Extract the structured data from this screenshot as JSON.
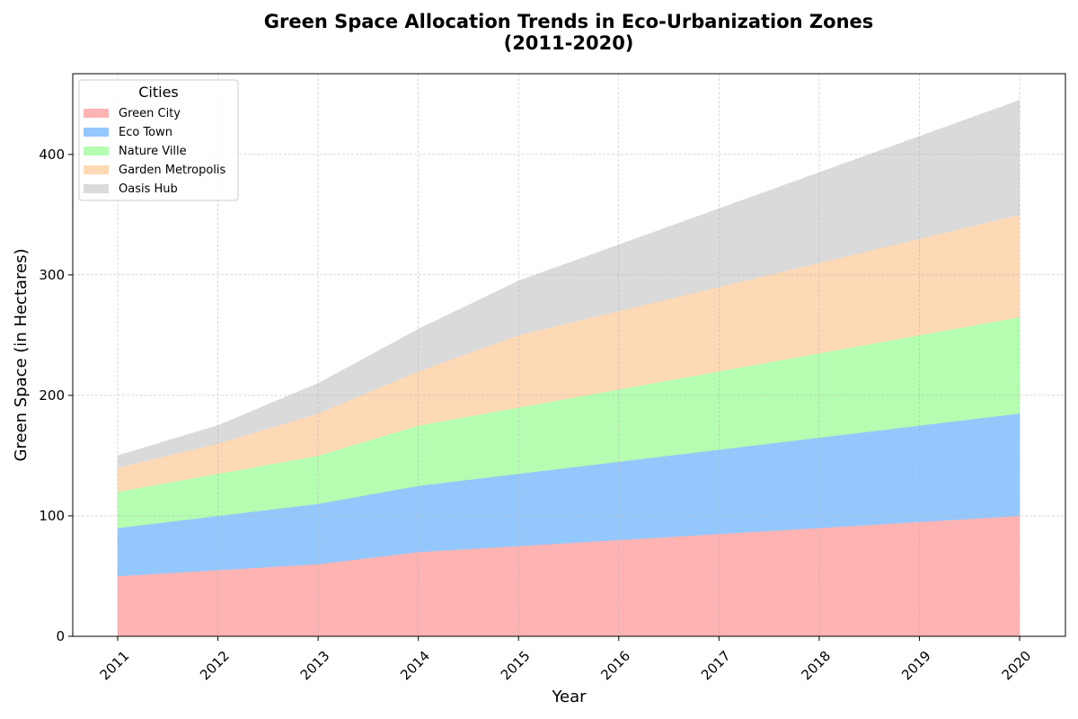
{
  "chart_data": {
    "type": "area",
    "stacked": true,
    "title_lines": [
      "Green Space Allocation Trends in Eco-Urbanization Zones",
      "(2011-2020)"
    ],
    "xlabel": "Year",
    "ylabel": "Green Space (in Hectares)",
    "x": [
      "2011",
      "2012",
      "2013",
      "2014",
      "2015",
      "2016",
      "2017",
      "2018",
      "2019",
      "2020"
    ],
    "ylim": [
      0,
      467
    ],
    "yticks": [
      0,
      100,
      200,
      300,
      400
    ],
    "grid": true,
    "legend": {
      "title": "Cities",
      "placement": "top-left"
    },
    "series": [
      {
        "name": "Green City",
        "color": "#ffb3b3",
        "values": [
          50,
          55,
          60,
          70,
          75,
          80,
          85,
          90,
          95,
          100
        ]
      },
      {
        "name": "Eco Town",
        "color": "#94c8fc",
        "values": [
          40,
          45,
          50,
          55,
          60,
          65,
          70,
          75,
          80,
          85
        ]
      },
      {
        "name": "Nature Ville",
        "color": "#b5fdb1",
        "values": [
          30,
          35,
          40,
          50,
          55,
          60,
          65,
          70,
          75,
          80
        ]
      },
      {
        "name": "Garden Metropolis",
        "color": "#fed9b5",
        "values": [
          20,
          25,
          35,
          45,
          60,
          65,
          70,
          75,
          80,
          85
        ]
      },
      {
        "name": "Oasis Hub",
        "color": "#dadada",
        "values": [
          10,
          15,
          25,
          35,
          45,
          55,
          65,
          75,
          85,
          95
        ]
      }
    ]
  }
}
